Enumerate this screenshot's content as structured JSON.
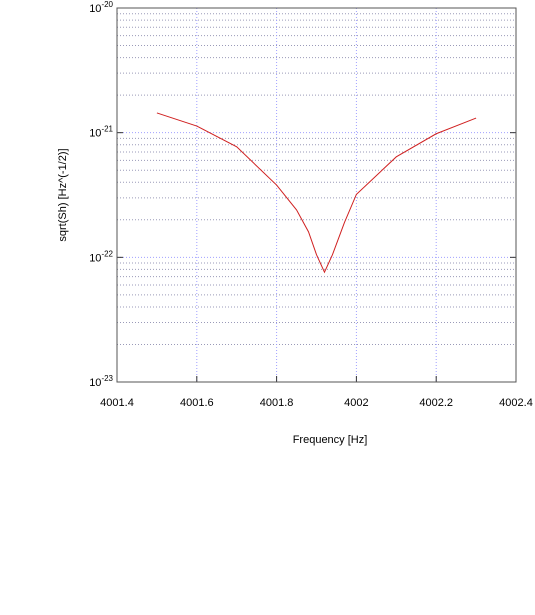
{
  "chart_data": {
    "type": "line",
    "xlabel": "Frequency [Hz]",
    "ylabel": "sqrt(Sh) [Hz^(-1/2)]",
    "log_y": true,
    "grid": true,
    "minor_grid": true,
    "xlim": [
      4001.4,
      4002.4
    ],
    "xticks": [
      4001.4,
      4001.6,
      4001.8,
      4002,
      4002.2,
      4002.4
    ],
    "ylim": [
      1e-23,
      1e-20
    ],
    "yticks": [
      {
        "value": 1e-23,
        "label": "10^-23"
      },
      {
        "value": 1e-22,
        "label": "10^-22"
      },
      {
        "value": 1e-21,
        "label": "10^-21"
      },
      {
        "value": 1e-20,
        "label": "10^-20"
      }
    ],
    "series": [
      {
        "color": "#d02020",
        "x": [
          4001.5,
          4001.6,
          4001.7,
          4001.8,
          4001.85,
          4001.88,
          4001.9,
          4001.92,
          4001.94,
          4001.97,
          4002.0,
          4002.1,
          4002.2,
          4002.3
        ],
        "values": [
          1.44e-21,
          1.13e-21,
          7.7e-22,
          3.8e-22,
          2.4e-22,
          1.6e-22,
          1.05e-22,
          7.6e-23,
          1.05e-22,
          1.9e-22,
          3.2e-22,
          6.4e-22,
          9.8e-22,
          1.31e-21
        ]
      }
    ]
  }
}
